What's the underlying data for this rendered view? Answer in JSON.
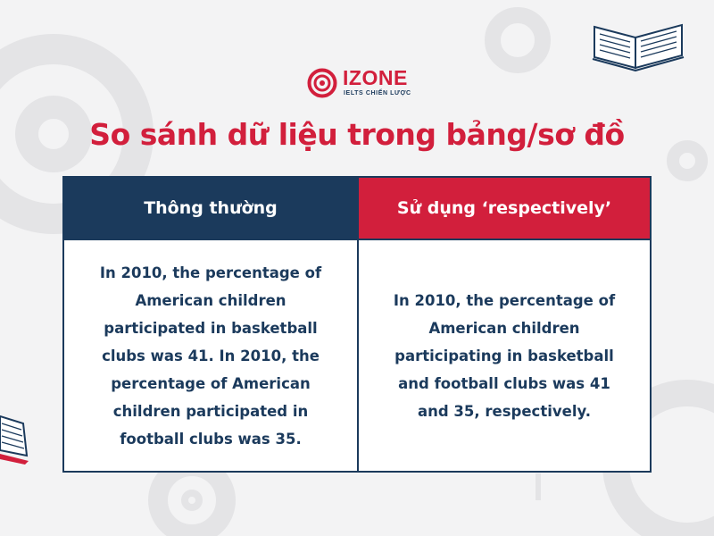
{
  "logo": {
    "name": "IZONE",
    "tagline": "IELTS CHIẾN LƯỢC"
  },
  "title": "So sánh dữ liệu trong bảng/sơ đồ",
  "table": {
    "headers": [
      "Thông thường",
      "Sử dụng ‘respectively’"
    ],
    "cells": [
      "In 2010, the percentage of American children participated in basketball clubs was 41. In 2010, the percentage of American children participated in football clubs was 35.",
      "In 2010, the percentage of American children participating in basketball and football clubs was 41 and 35, respectively."
    ]
  },
  "colors": {
    "navy": "#1b3a5c",
    "red": "#d21f3c",
    "background": "#f3f3f4",
    "decoration": "#e4e4e6"
  },
  "icons": [
    "open-book-icon",
    "open-book-icon",
    "izone-target-logo-icon"
  ]
}
